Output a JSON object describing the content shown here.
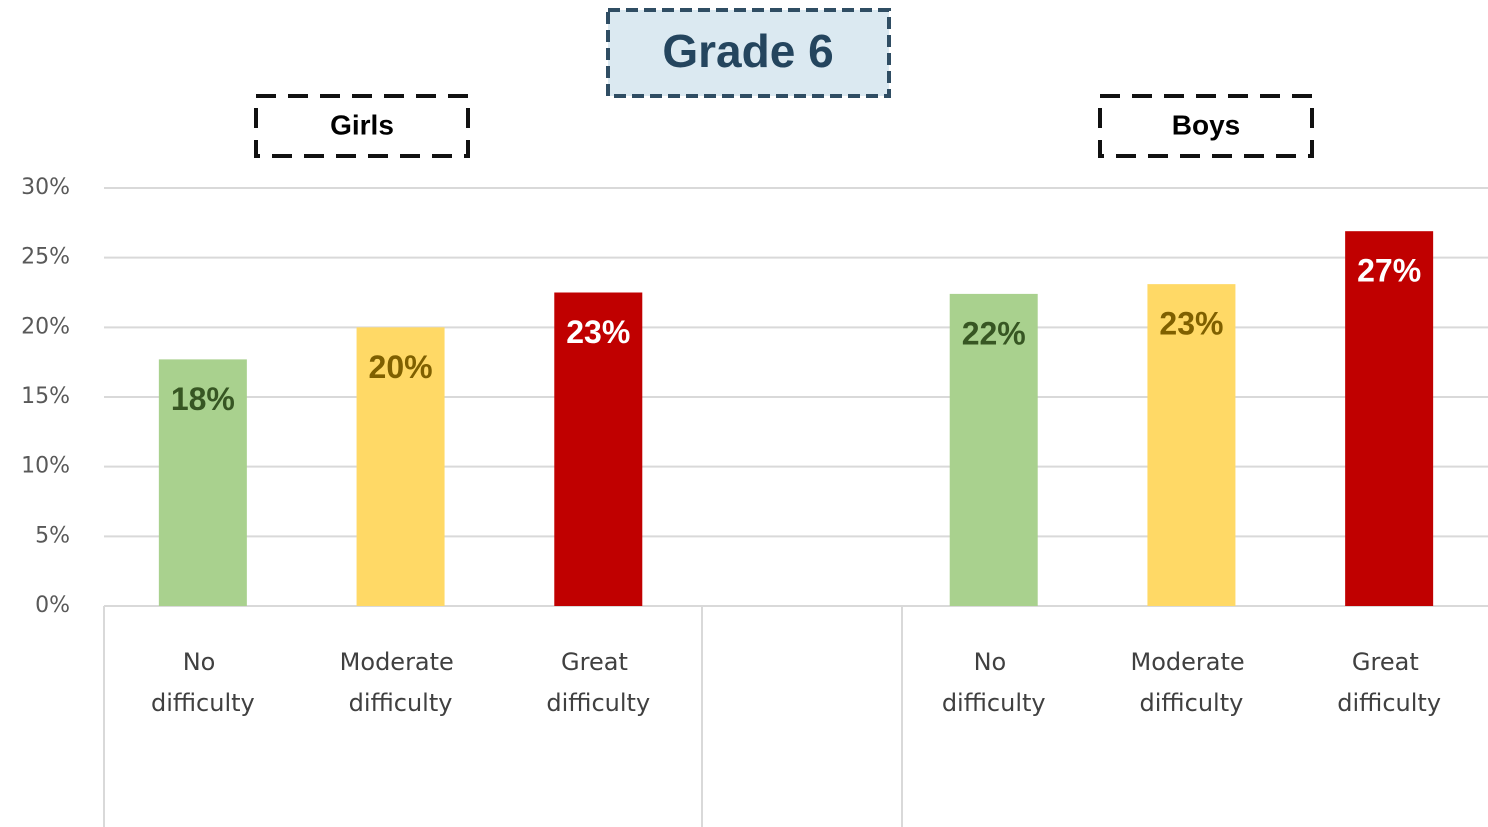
{
  "chart_data": {
    "type": "bar",
    "title": "Grade 6",
    "groups": [
      "Girls",
      "Boys"
    ],
    "categories": [
      "No difficulty",
      "Moderate difficulty",
      "Great difficulty",
      null,
      "No difficulty",
      "Moderate difficulty",
      "Great difficulty"
    ],
    "values": [
      17.7,
      20,
      22.5,
      null,
      22.4,
      23.1,
      26.9
    ],
    "value_labels": [
      "18%",
      "20%",
      "23%",
      null,
      "22%",
      "23%",
      "27%"
    ],
    "colors": [
      "#a9d18e",
      "#ffd966",
      "#c00000",
      null,
      "#a9d18e",
      "#ffd966",
      "#c00000"
    ],
    "label_colors": [
      "#375623",
      "#7f6000",
      "#ffffff",
      null,
      "#375623",
      "#7f6000",
      "#ffffff"
    ],
    "ylim": [
      0,
      30
    ],
    "yticks": [
      {
        "value": 0,
        "label": "0%"
      },
      {
        "value": 5,
        "label": "5%"
      },
      {
        "value": 10,
        "label": "10%"
      },
      {
        "value": 15,
        "label": "15%"
      },
      {
        "value": 20,
        "label": "20%"
      },
      {
        "value": 25,
        "label": "25%"
      },
      {
        "value": 30,
        "label": "30%"
      }
    ],
    "grid": true
  }
}
